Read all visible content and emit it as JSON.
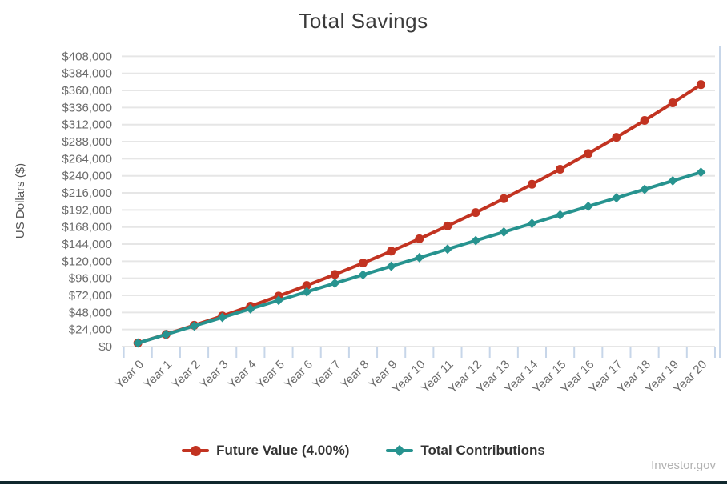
{
  "page": {
    "title": "Total Savings"
  },
  "footer": {
    "brand": "Investor.gov",
    "bar_color": "#10282d"
  },
  "chart_data": {
    "type": "line",
    "title": "Total Savings",
    "xlabel": "",
    "ylabel": "US Dollars ($)",
    "categories": [
      "Year 0",
      "Year 1",
      "Year 2",
      "Year 3",
      "Year 4",
      "Year 5",
      "Year 6",
      "Year 7",
      "Year 8",
      "Year 9",
      "Year 10",
      "Year 11",
      "Year 12",
      "Year 13",
      "Year 14",
      "Year 15",
      "Year 16",
      "Year 17",
      "Year 18",
      "Year 19",
      "Year 20"
    ],
    "ylim": [
      0,
      408000
    ],
    "ytick_step": 24000,
    "ytick_labels": [
      "$0",
      "$24,000",
      "$48,000",
      "$72,000",
      "$96,000",
      "$120,000",
      "$144,000",
      "$168,000",
      "$192,000",
      "$216,000",
      "$240,000",
      "$264,000",
      "$288,000",
      "$312,000",
      "$336,000",
      "$360,000",
      "$384,000",
      "$408,000"
    ],
    "grid": true,
    "legend_position": "bottom",
    "colors": {
      "grid": "#e6e6e6",
      "tick": "#c7d6e9",
      "axis_text": "#6b6b6b",
      "title_text": "#3a3a3a",
      "legend_text": "#333333"
    },
    "series": [
      {
        "name": "Future Value (4.00%)",
        "color": "#c23321",
        "marker": "circle",
        "values": [
          5000,
          17200,
          29888,
          43083,
          56807,
          71079,
          85922,
          101359,
          117414,
          134110,
          151474,
          169534,
          188315,
          207847,
          228161,
          249288,
          271259,
          294110,
          317874,
          342589,
          368293
        ]
      },
      {
        "name": "Total Contributions",
        "color": "#27938f",
        "marker": "diamond",
        "values": [
          5000,
          17000,
          29000,
          41000,
          53000,
          65000,
          77000,
          89000,
          101000,
          113000,
          125000,
          137000,
          149000,
          161000,
          173000,
          185000,
          197000,
          209000,
          221000,
          233000,
          245000
        ]
      }
    ]
  }
}
